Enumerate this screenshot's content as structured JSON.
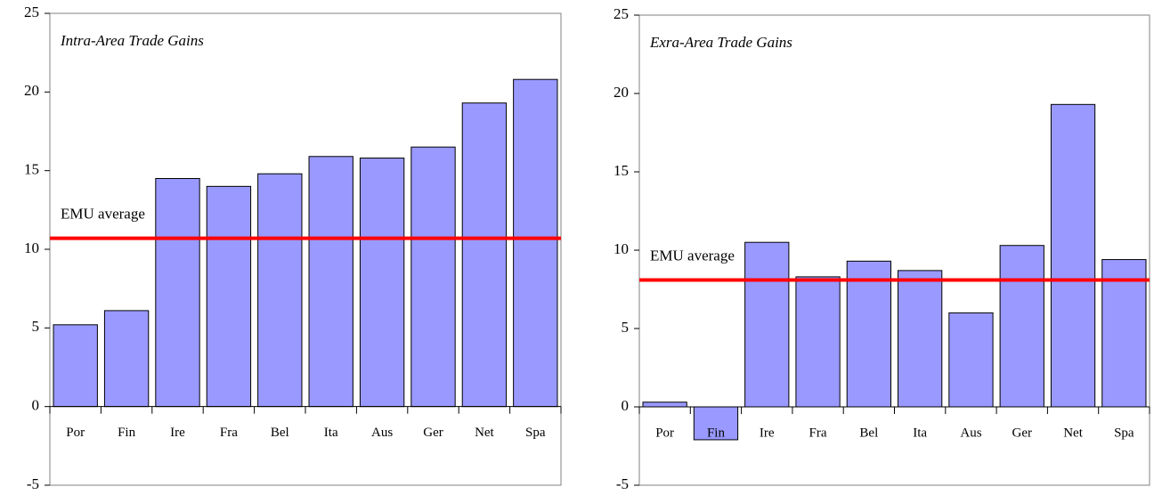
{
  "chart_data": [
    {
      "type": "bar",
      "title": "Intra-Area Trade Gains",
      "categories": [
        "Por",
        "Fin",
        "Ire",
        "Fra",
        "Bel",
        "Ita",
        "Aus",
        "Ger",
        "Net",
        "Spa"
      ],
      "values": [
        5.2,
        6.1,
        14.5,
        14.0,
        14.8,
        15.9,
        15.8,
        16.5,
        19.3,
        20.8
      ],
      "color": "#9999ff",
      "ylim": [
        -5,
        25
      ],
      "yticks": [
        -5,
        0,
        5,
        10,
        15,
        20,
        25
      ],
      "reference": {
        "label": "EMU average",
        "value": 10.7,
        "color": "#ff0000"
      }
    },
    {
      "type": "bar",
      "title": "Exra-Area Trade Gains",
      "categories": [
        "Por",
        "Fin",
        "Ire",
        "Fra",
        "Bel",
        "Ita",
        "Aus",
        "Ger",
        "Net",
        "Spa"
      ],
      "values": [
        0.3,
        -2.1,
        10.5,
        8.3,
        9.3,
        8.7,
        6.0,
        10.3,
        19.3,
        9.4
      ],
      "color": "#9999ff",
      "ylim": [
        -5,
        25
      ],
      "yticks": [
        -5,
        0,
        5,
        10,
        15,
        20,
        25
      ],
      "reference": {
        "label": "EMU average",
        "value": 8.1,
        "color": "#ff0000"
      }
    }
  ]
}
